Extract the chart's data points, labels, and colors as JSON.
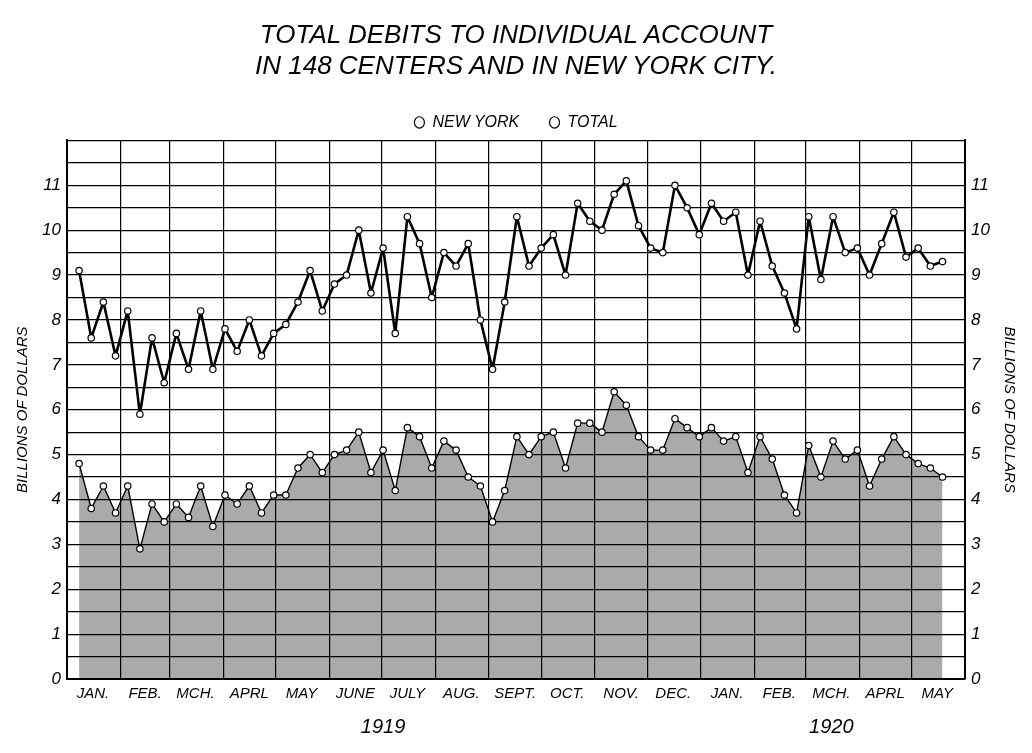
{
  "chart_data": {
    "type": "line",
    "title": "TOTAL DEBITS TO INDIVIDUAL ACCOUNT\nIN 148 CENTERS AND IN NEW YORK CITY.",
    "ylabel": "BILLIONS OF DOLLARS",
    "y2label": "BILLIONS OF DOLLARS",
    "x": [
      "1919-01-08",
      "1919-01-15",
      "1919-01-22",
      "1919-01-29",
      "1919-02-05",
      "1919-02-12",
      "1919-02-19",
      "1919-02-26",
      "1919-03-05",
      "1919-03-12",
      "1919-03-19",
      "1919-03-26",
      "1919-04-02",
      "1919-04-09",
      "1919-04-16",
      "1919-04-23",
      "1919-04-30",
      "1919-05-07",
      "1919-05-14",
      "1919-05-21",
      "1919-05-28",
      "1919-06-04",
      "1919-06-11",
      "1919-06-18",
      "1919-06-25",
      "1919-07-02",
      "1919-07-09",
      "1919-07-16",
      "1919-07-23",
      "1919-07-30",
      "1919-08-06",
      "1919-08-13",
      "1919-08-20",
      "1919-08-27",
      "1919-09-03",
      "1919-09-10",
      "1919-09-17",
      "1919-09-24",
      "1919-10-01",
      "1919-10-08",
      "1919-10-15",
      "1919-10-22",
      "1919-10-29",
      "1919-11-05",
      "1919-11-12",
      "1919-11-19",
      "1919-11-26",
      "1919-12-03",
      "1919-12-10",
      "1919-12-17",
      "1919-12-24",
      "1919-12-31",
      "1920-01-07",
      "1920-01-14",
      "1920-01-21",
      "1920-01-28",
      "1920-02-04",
      "1920-02-11",
      "1920-02-18",
      "1920-02-25",
      "1920-03-03",
      "1920-03-10",
      "1920-03-17",
      "1920-03-24",
      "1920-03-31",
      "1920-04-07",
      "1920-04-14",
      "1920-04-21",
      "1920-04-28",
      "1920-05-05",
      "1920-05-12",
      "1920-05-19"
    ],
    "series": [
      {
        "name": "NEW YORK",
        "type": "area",
        "color": "#000000",
        "values": [
          4.8,
          3.8,
          4.3,
          3.7,
          4.3,
          2.9,
          3.9,
          3.5,
          3.9,
          3.6,
          4.3,
          3.4,
          4.1,
          3.9,
          4.3,
          3.7,
          4.1,
          4.1,
          4.7,
          5.0,
          4.6,
          5.0,
          5.1,
          5.5,
          4.6,
          5.1,
          4.2,
          5.6,
          5.4,
          4.7,
          5.3,
          5.1,
          4.5,
          4.3,
          3.5,
          4.2,
          5.4,
          5.0,
          5.4,
          5.5,
          4.7,
          5.7,
          5.7,
          5.5,
          6.4,
          6.1,
          5.4,
          5.1,
          5.1,
          5.8,
          5.6,
          5.4,
          5.6,
          5.3,
          5.4,
          4.6,
          5.4,
          4.9,
          4.1,
          3.7,
          5.2,
          4.5,
          5.3,
          4.9,
          5.1,
          4.3,
          4.9,
          5.4,
          5.0,
          4.8,
          4.7,
          4.5
        ]
      },
      {
        "name": "TOTAL",
        "type": "line",
        "color": "#000000",
        "values": [
          9.1,
          7.6,
          8.4,
          7.2,
          8.2,
          5.9,
          7.6,
          6.6,
          7.7,
          6.9,
          8.2,
          6.9,
          7.8,
          7.3,
          8.0,
          7.2,
          7.7,
          7.9,
          8.4,
          9.1,
          8.2,
          8.8,
          9.0,
          10.0,
          8.6,
          9.6,
          7.7,
          10.3,
          9.7,
          8.5,
          9.5,
          9.2,
          9.7,
          8.0,
          6.9,
          8.4,
          10.3,
          9.2,
          9.6,
          9.9,
          9.0,
          10.6,
          10.2,
          10.0,
          10.8,
          11.1,
          10.1,
          9.6,
          9.5,
          11.0,
          10.5,
          9.9,
          10.6,
          10.2,
          10.4,
          9.0,
          10.2,
          9.2,
          8.6,
          7.8,
          10.3,
          8.9,
          10.3,
          9.5,
          9.6,
          9.0,
          9.7,
          10.4,
          9.4,
          9.6,
          9.2,
          9.3
        ]
      }
    ],
    "xlim": [
      "1919-01-01",
      "1920-06-01"
    ],
    "xticks": [
      {
        "value": "1919-01-01",
        "label": null
      },
      {
        "value": "1919-01-16",
        "label": "JAN."
      },
      {
        "value": "1919-02-01",
        "label": null
      },
      {
        "value": "1919-02-15",
        "label": "FEB."
      },
      {
        "value": "1919-03-01",
        "label": null
      },
      {
        "value": "1919-03-16",
        "label": "MCH."
      },
      {
        "value": "1919-04-01",
        "label": null
      },
      {
        "value": "1919-04-16",
        "label": "APRL"
      },
      {
        "value": "1919-05-01",
        "label": null
      },
      {
        "value": "1919-05-16",
        "label": "MAY"
      },
      {
        "value": "1919-06-01",
        "label": null
      },
      {
        "value": "1919-06-16",
        "label": "JUNE"
      },
      {
        "value": "1919-07-01",
        "label": null
      },
      {
        "value": "1919-07-16",
        "label": "JULY"
      },
      {
        "value": "1919-08-01",
        "label": null
      },
      {
        "value": "1919-08-16",
        "label": "AUG."
      },
      {
        "value": "1919-09-01",
        "label": null
      },
      {
        "value": "1919-09-16",
        "label": "SEPT."
      },
      {
        "value": "1919-10-01",
        "label": null
      },
      {
        "value": "1919-10-16",
        "label": "OCT."
      },
      {
        "value": "1919-11-01",
        "label": null
      },
      {
        "value": "1919-11-16",
        "label": "NOV."
      },
      {
        "value": "1919-12-01",
        "label": null
      },
      {
        "value": "1919-12-16",
        "label": "DEC."
      },
      {
        "value": "1920-01-01",
        "label": null
      },
      {
        "value": "1920-01-16",
        "label": "JAN."
      },
      {
        "value": "1920-02-01",
        "label": null
      },
      {
        "value": "1920-02-15",
        "label": "FEB."
      },
      {
        "value": "1920-03-01",
        "label": null
      },
      {
        "value": "1920-03-16",
        "label": "MCH."
      },
      {
        "value": "1920-04-01",
        "label": null
      },
      {
        "value": "1920-04-16",
        "label": "APRL"
      },
      {
        "value": "1920-05-01",
        "label": null
      },
      {
        "value": "1920-05-16",
        "label": "MAY"
      },
      {
        "value": "1920-06-01",
        "label": null
      }
    ],
    "x2lim": [
      "1919-01-01",
      "1920-06-01"
    ],
    "x2ticks": [
      {
        "value": "1919-07-02",
        "label": "1919"
      },
      {
        "value": "1920-03-16",
        "label": "1920"
      }
    ],
    "ylim": [
      0,
      12
    ],
    "yticks": [
      0,
      {
        "value": 0.5,
        "label": null
      },
      1,
      {
        "value": 1.5,
        "label": null
      },
      2,
      {
        "value": 2.5,
        "label": null
      },
      3,
      {
        "value": 3.5,
        "label": null
      },
      4,
      {
        "value": 4.5,
        "label": null
      },
      5,
      {
        "value": 5.5,
        "label": null
      },
      6,
      {
        "value": 6.5,
        "label": null
      },
      7,
      {
        "value": 7.5,
        "label": null
      },
      8,
      {
        "value": 8.5,
        "label": null
      },
      9,
      {
        "value": 9.5,
        "label": null
      },
      10,
      {
        "value": 10.5,
        "label": null
      },
      11,
      {
        "value": 11.5,
        "label": null
      },
      {
        "value": 12,
        "label": null
      }
    ],
    "y2lim": [
      0,
      12
    ],
    "y2ticks": [
      0,
      1,
      2,
      3,
      4,
      5,
      6,
      7,
      8,
      9,
      10,
      11
    ],
    "grid": true,
    "legend": "top",
    "marker": "circle",
    "line_style": "solid"
  }
}
